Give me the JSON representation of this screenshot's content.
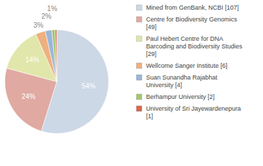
{
  "chart_data": {
    "type": "pie",
    "categories": [
      "Mined from GenBank, NCBI [107]",
      "Centre for Biodiversity Genomics [49]",
      "Paul Hebert Centre for DNA Barcoding and Biodiversity Studies [29]",
      "Wellcome Sanger Institute [6]",
      "Suan Sunandha Rajabhat University [4]",
      "Berhampur University [2]",
      "University of Sri Jayewardenepura [1]"
    ],
    "values": [
      54,
      24,
      14,
      3,
      2,
      1,
      0.5
    ],
    "value_labels": [
      "54%",
      "24%",
      "14%",
      "3%",
      "2%",
      "1%",
      null
    ],
    "colors": [
      "#ccd8e6",
      "#e0a9a2",
      "#e1e6ab",
      "#eeb07f",
      "#9cb5d9",
      "#a3c770",
      "#d9684b"
    ],
    "data_labels": true,
    "legend": "upper right"
  }
}
